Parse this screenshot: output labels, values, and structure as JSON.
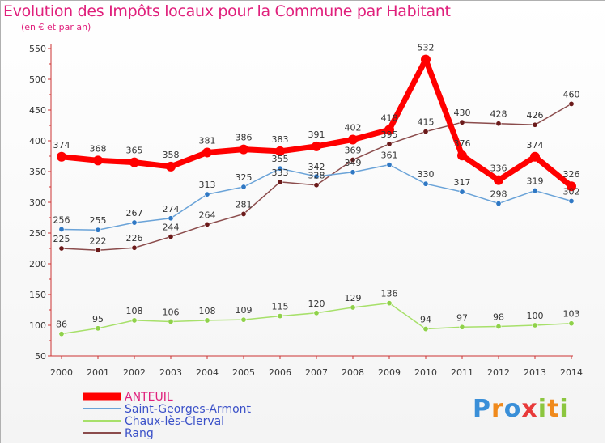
{
  "chart_data": {
    "type": "line",
    "title": "Evolution des Impôts locaux pour la Commune par Habitant",
    "subtitle": "(en € et par an)",
    "xlabel": "",
    "ylabel": "",
    "ylim": [
      50,
      550
    ],
    "yticks": [
      50,
      100,
      150,
      200,
      250,
      300,
      350,
      400,
      450,
      500,
      550
    ],
    "grid": false,
    "legend_position": "bottom-left",
    "categories": [
      "2000",
      "2001",
      "2002",
      "2003",
      "2004",
      "2005",
      "2006",
      "2007",
      "2008",
      "2009",
      "2010",
      "2011",
      "2012",
      "2013",
      "2014"
    ],
    "series": [
      {
        "name": "ANTEUIL",
        "color": "#ff0000",
        "marker": "#ff0000",
        "label_color": "#333333",
        "values": [
          374,
          368,
          365,
          358,
          381,
          386,
          383,
          391,
          402,
          418,
          532,
          376,
          336,
          374,
          326
        ]
      },
      {
        "name": "Saint-Georges-Armont",
        "color": "#6aa3d8",
        "marker": "#2f78c4",
        "label_color": "#333333",
        "values": [
          256,
          255,
          267,
          274,
          313,
          325,
          355,
          342,
          349,
          361,
          330,
          317,
          298,
          319,
          302
        ]
      },
      {
        "name": "Chaux-lès-Clerval",
        "color": "#a7e06a",
        "marker": "#8fd14a",
        "label_color": "#333333",
        "values": [
          86,
          95,
          108,
          106,
          108,
          109,
          115,
          120,
          129,
          136,
          94,
          97,
          98,
          100,
          103
        ]
      },
      {
        "name": "Rang",
        "color": "#8b4c4c",
        "marker": "#6b1a1a",
        "label_color": "#333333",
        "values": [
          225,
          222,
          226,
          244,
          264,
          281,
          333,
          328,
          369,
          395,
          415,
          430,
          428,
          426,
          460
        ]
      }
    ]
  },
  "logo": {
    "text": "Proxiti",
    "letters": [
      "P",
      "r",
      "o",
      "x",
      "i",
      "t",
      "i"
    ],
    "colors": [
      "#3a8fd8",
      "#f08a1c",
      "#3a8fd8",
      "#e83a3a",
      "#8cc63f",
      "#f08a1c",
      "#8cc63f"
    ]
  }
}
